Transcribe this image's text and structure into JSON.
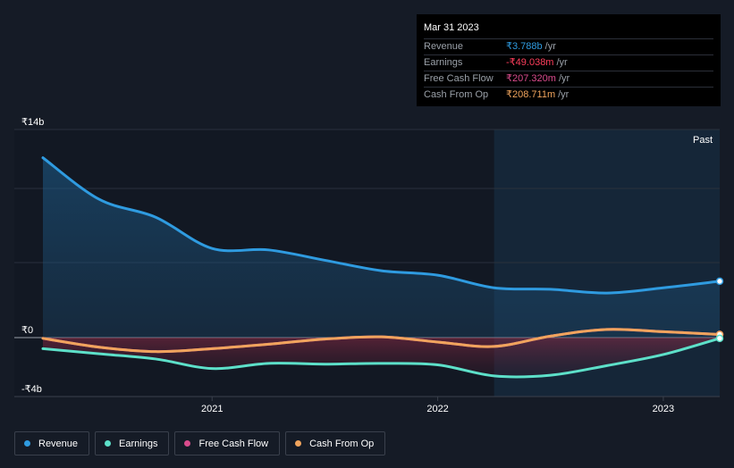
{
  "tooltip": {
    "date": "Mar 31 2023",
    "rows": [
      {
        "label": "Revenue",
        "value": "₹3.788b",
        "unit": "/yr",
        "color": "#2f9be0"
      },
      {
        "label": "Earnings",
        "value": "-₹49.038m",
        "unit": "/yr",
        "color": "#ff3e5c"
      },
      {
        "label": "Free Cash Flow",
        "value": "₹207.320m",
        "unit": "/yr",
        "color": "#d94b8c"
      },
      {
        "label": "Cash From Op",
        "value": "₹208.711m",
        "unit": "/yr",
        "color": "#f0a45d"
      }
    ]
  },
  "legend": [
    {
      "label": "Revenue",
      "color": "#2f9be0"
    },
    {
      "label": "Earnings",
      "color": "#5de0c9"
    },
    {
      "label": "Free Cash Flow",
      "color": "#d94b8c"
    },
    {
      "label": "Cash From Op",
      "color": "#f0a45d"
    }
  ],
  "chart_data": {
    "type": "area",
    "y_tick_labels": [
      "₹14b",
      "₹0",
      "-₹4b"
    ],
    "y_ticks": [
      14,
      0,
      -4
    ],
    "ylim": [
      -4,
      14
    ],
    "xlim": [
      2020.25,
      2023.25
    ],
    "x_ticks": [
      2021,
      2022,
      2023
    ],
    "x_tick_labels": [
      "2021",
      "2022",
      "2023"
    ],
    "past_label": "Past",
    "past_start": 2022.25,
    "series": [
      {
        "name": "Revenue",
        "color": "#2f9be0",
        "x": [
          2020.25,
          2020.5,
          2020.75,
          2021.0,
          2021.25,
          2021.5,
          2021.75,
          2022.0,
          2022.25,
          2022.5,
          2022.75,
          2023.0,
          2023.25
        ],
        "y": [
          12.1,
          9.3,
          8.1,
          6.0,
          5.9,
          5.2,
          4.5,
          4.2,
          3.35,
          3.25,
          3.0,
          3.35,
          3.79
        ]
      },
      {
        "name": "Earnings",
        "color": "#5de0c9",
        "x": [
          2020.25,
          2020.5,
          2020.75,
          2021.0,
          2021.25,
          2021.5,
          2021.75,
          2022.0,
          2022.25,
          2022.5,
          2022.75,
          2023.0,
          2023.25
        ],
        "y": [
          -0.75,
          -1.1,
          -1.45,
          -2.1,
          -1.75,
          -1.8,
          -1.75,
          -1.85,
          -2.6,
          -2.55,
          -1.9,
          -1.15,
          -0.05
        ]
      },
      {
        "name": "Free Cash Flow",
        "color": "#d94b8c",
        "x": [
          2020.25,
          2020.5,
          2020.75,
          2021.0,
          2021.25,
          2021.5,
          2021.75,
          2022.0,
          2022.25,
          2022.5,
          2022.75,
          2023.0,
          2023.25
        ],
        "y": [
          -0.05,
          -0.65,
          -0.95,
          -0.75,
          -0.45,
          -0.1,
          0.05,
          -0.3,
          -0.6,
          0.1,
          0.55,
          0.4,
          0.21
        ]
      },
      {
        "name": "Cash From Op",
        "color": "#f0a45d",
        "x": [
          2020.25,
          2020.5,
          2020.75,
          2021.0,
          2021.25,
          2021.5,
          2021.75,
          2022.0,
          2022.25,
          2022.5,
          2022.75,
          2023.0,
          2023.25
        ],
        "y": [
          -0.05,
          -0.65,
          -0.95,
          -0.75,
          -0.45,
          -0.1,
          0.05,
          -0.3,
          -0.6,
          0.1,
          0.55,
          0.4,
          0.21
        ]
      }
    ]
  }
}
